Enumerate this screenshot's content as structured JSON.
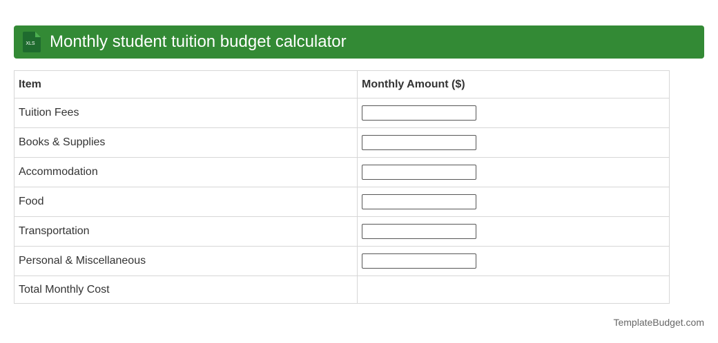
{
  "header": {
    "icon_label": "XLS",
    "title": "Monthly student tuition budget calculator"
  },
  "table": {
    "columns": [
      "Item",
      "Monthly Amount ($)"
    ],
    "rows": [
      "Tuition Fees",
      "Books & Supplies",
      "Accommodation",
      "Food",
      "Transportation",
      "Personal & Miscellaneous"
    ],
    "total_label": "Total Monthly Cost"
  },
  "footer": "TemplateBudget.com"
}
